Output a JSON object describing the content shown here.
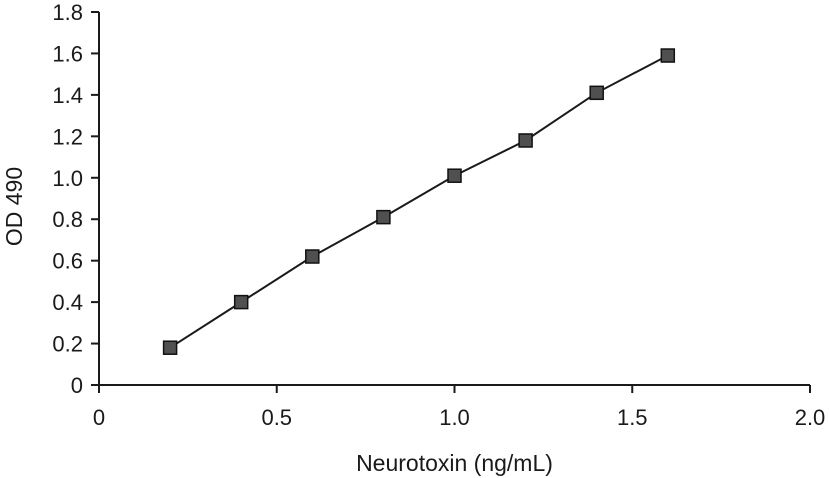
{
  "chart_data": {
    "type": "line",
    "title": "",
    "xlabel": "Neurotoxin (ng/mL)",
    "ylabel": "OD 490",
    "xlim": [
      0,
      2.0
    ],
    "ylim": [
      0,
      1.8
    ],
    "x_ticks": [
      {
        "value": 0,
        "label": "0"
      },
      {
        "value": 0.5,
        "label": "0.5"
      },
      {
        "value": 1.0,
        "label": "1.0"
      },
      {
        "value": 1.5,
        "label": "1.5"
      },
      {
        "value": 2.0,
        "label": "2.0"
      }
    ],
    "y_ticks": [
      {
        "value": 0,
        "label": "0"
      },
      {
        "value": 0.2,
        "label": "0.2"
      },
      {
        "value": 0.4,
        "label": "0.4"
      },
      {
        "value": 0.6,
        "label": "0.6"
      },
      {
        "value": 0.8,
        "label": "0.8"
      },
      {
        "value": 1.0,
        "label": "1.0"
      },
      {
        "value": 1.2,
        "label": "1.2"
      },
      {
        "value": 1.4,
        "label": "1.4"
      },
      {
        "value": 1.6,
        "label": "1.6"
      },
      {
        "value": 1.8,
        "label": "1.8"
      }
    ],
    "grid": false,
    "legend": "none",
    "series": [
      {
        "x": [
          0.2,
          0.4,
          0.6,
          0.8,
          1.0,
          1.2,
          1.4,
          1.6
        ],
        "y": [
          0.18,
          0.4,
          0.62,
          0.81,
          1.01,
          1.18,
          1.41,
          1.59
        ],
        "marker": "square",
        "marker_color": "#505050",
        "line_color": "#1a1a1a"
      }
    ]
  }
}
